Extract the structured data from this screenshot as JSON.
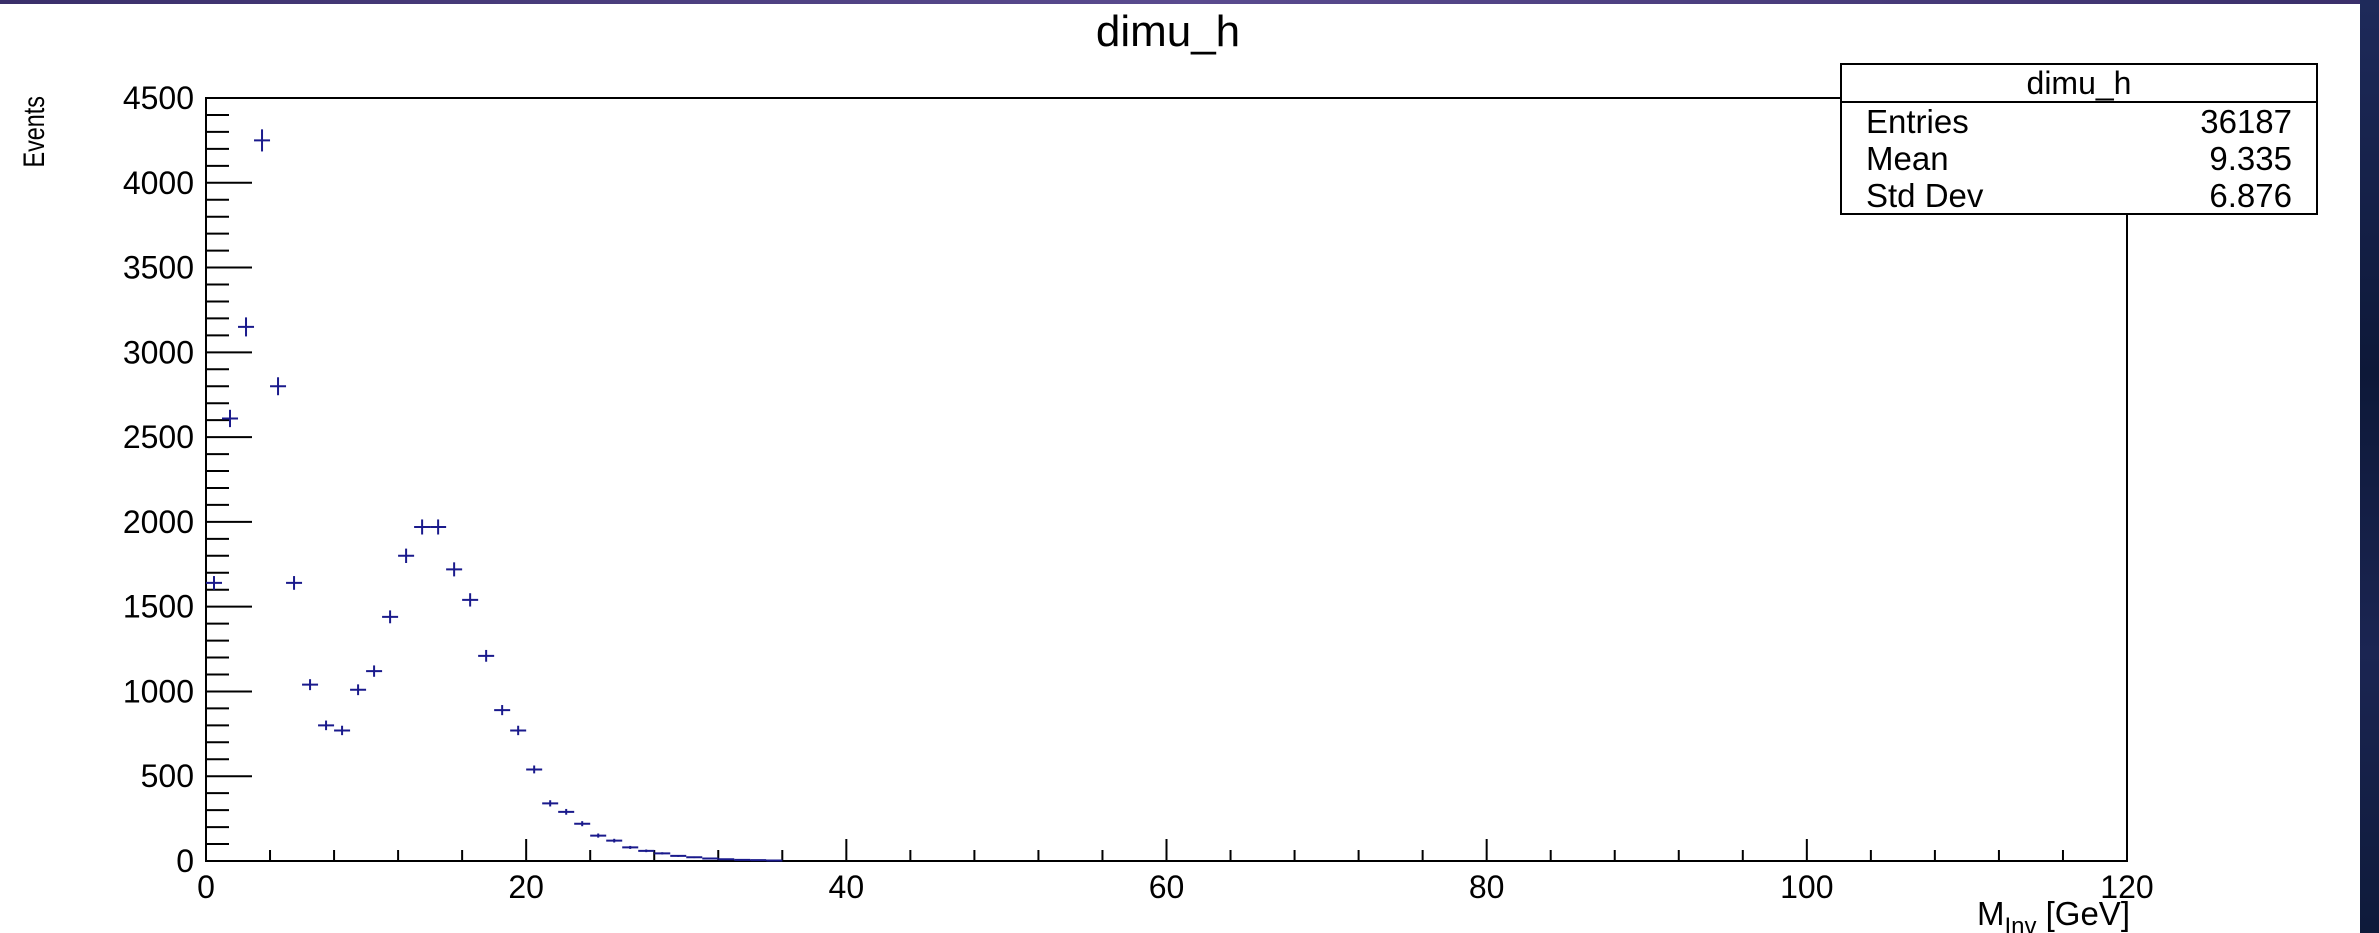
{
  "chart_data": {
    "type": "scatter",
    "style": "histogram-with-error-crosses",
    "title": "dimu_h",
    "xlabel": "M_Inv [GeV]",
    "xlabel_main": "M",
    "xlabel_sub": "Inv",
    "xlabel_unit": " [GeV]",
    "ylabel": "Events",
    "xlim": [
      0,
      120
    ],
    "ylim": [
      0,
      4500
    ],
    "x_ticks": [
      0,
      20,
      40,
      60,
      80,
      100,
      120
    ],
    "x_tick_labels": [
      "0",
      "20",
      "40",
      "60",
      "80",
      "100",
      "120"
    ],
    "y_ticks": [
      0,
      500,
      1000,
      1500,
      2000,
      2500,
      3000,
      3500,
      4000,
      4500
    ],
    "y_tick_labels": [
      "0",
      "500",
      "1000",
      "1500",
      "2000",
      "2500",
      "3000",
      "3500",
      "4000",
      "4500"
    ],
    "bin_width": 1,
    "grid": false,
    "series": [
      {
        "color": "#1a1a8c",
        "x": [
          0.5,
          1.5,
          2.5,
          3.5,
          4.5,
          5.5,
          6.5,
          7.5,
          8.5,
          9.5,
          10.5,
          11.5,
          12.5,
          13.5,
          14.5,
          15.5,
          16.5,
          17.5,
          18.5,
          19.5,
          20.5,
          21.5,
          22.5,
          23.5,
          24.5,
          25.5,
          26.5,
          27.5,
          28.5,
          29.5,
          30.5,
          31.5,
          32.5,
          33.5,
          34.5,
          35.5
        ],
        "y": [
          1640,
          2610,
          3150,
          4250,
          2800,
          1640,
          1040,
          800,
          770,
          1010,
          1120,
          1440,
          1800,
          1970,
          1970,
          1720,
          1540,
          1210,
          890,
          770,
          540,
          340,
          290,
          220,
          150,
          120,
          80,
          60,
          45,
          30,
          22,
          15,
          10,
          7,
          5,
          3
        ]
      }
    ]
  },
  "stats_box": {
    "title": "dimu_h",
    "rows": [
      {
        "label": "Entries",
        "value": "36187"
      },
      {
        "label": "Mean",
        "value": "9.335"
      },
      {
        "label": "Std Dev",
        "value": "6.876"
      }
    ]
  }
}
